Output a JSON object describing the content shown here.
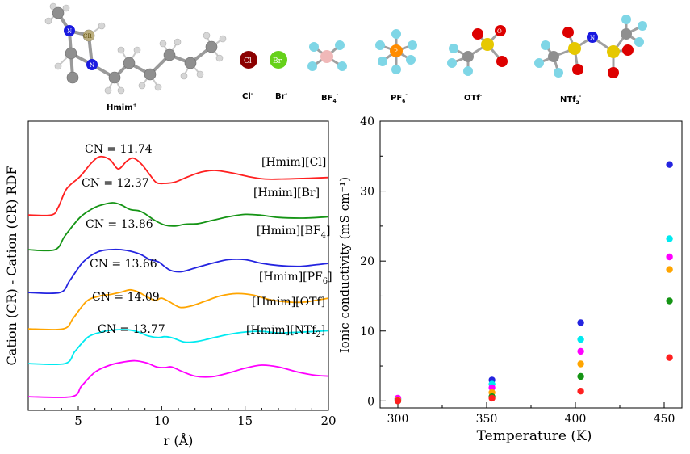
{
  "colors": {
    "Cl": "#ff2020",
    "Br": "#159415",
    "BF4": "#2424e0",
    "PF6": "#ffa500",
    "OTf": "#00eaf0",
    "NTf2": "#ff00ff",
    "atom_carbon": "#8f8f8f",
    "atom_hydrogen": "#cfcfcf",
    "atom_nitrogen": "#1a1ae0",
    "atom_chlorine": "#8b0000",
    "atom_bromine": "#66d11a",
    "atom_fluorine": "#7fd6e6",
    "atom_boron": "#f0b8b8",
    "atom_phosphorus": "#ff8c00",
    "atom_sulfur": "#e6c800",
    "atom_oxygen": "#dd0000"
  },
  "molecules": {
    "hmim": {
      "label": "Hmim",
      "charge": "+",
      "atom_label_cr": "CR",
      "atom_label_n": "N"
    },
    "cl": {
      "label": "Cl",
      "charge": "-",
      "atom_label": "Cl"
    },
    "br": {
      "label": "Br",
      "charge": "-",
      "atom_label": "Br"
    },
    "bf4": {
      "label": "BF",
      "sub": "4",
      "charge": "-"
    },
    "pf6": {
      "label": "PF",
      "sub": "6",
      "charge": "-",
      "atom_label": "P"
    },
    "otf": {
      "label": "OTf",
      "charge": "-",
      "atom_label_o": "O"
    },
    "ntf2": {
      "label": "NTf",
      "sub": "2",
      "charge": "-",
      "atom_label_n": "N"
    }
  },
  "chart_data": [
    {
      "type": "line",
      "panel": "left",
      "ylabel": "Cation (CR) - Cation (CR) RDF",
      "xlabel": "r (Å)",
      "xlim": [
        2,
        20
      ],
      "x_ticks": [
        5,
        10,
        15,
        20
      ],
      "y_ticks": [],
      "stacked_offsets": true,
      "series": [
        {
          "key": "Cl",
          "name": "[Hmim][Cl]",
          "cn_label": "CN = 11.74",
          "points": [
            [
              2,
              0.05
            ],
            [
              3.4,
              0.05
            ],
            [
              3.8,
              0.3
            ],
            [
              4.3,
              0.9
            ],
            [
              5.1,
              1.3
            ],
            [
              5.8,
              1.75
            ],
            [
              6.3,
              1.95
            ],
            [
              6.9,
              1.85
            ],
            [
              7.4,
              1.55
            ],
            [
              7.9,
              1.8
            ],
            [
              8.3,
              1.9
            ],
            [
              8.8,
              1.7
            ],
            [
              9.3,
              1.35
            ],
            [
              9.7,
              1.1
            ],
            [
              10.2,
              1.08
            ],
            [
              10.8,
              1.12
            ],
            [
              11.6,
              1.3
            ],
            [
              12.4,
              1.45
            ],
            [
              13.2,
              1.5
            ],
            [
              14.2,
              1.42
            ],
            [
              15.2,
              1.3
            ],
            [
              16.2,
              1.22
            ],
            [
              17.2,
              1.22
            ],
            [
              18.5,
              1.24
            ],
            [
              20,
              1.27
            ]
          ]
        },
        {
          "key": "Br",
          "name": "[Hmim][Br]",
          "cn_label": "CN = 12.37",
          "points": [
            [
              2,
              0.05
            ],
            [
              3.6,
              0.05
            ],
            [
              4.2,
              0.5
            ],
            [
              5.1,
              1.1
            ],
            [
              5.9,
              1.4
            ],
            [
              6.5,
              1.52
            ],
            [
              7.1,
              1.58
            ],
            [
              7.6,
              1.5
            ],
            [
              8.1,
              1.36
            ],
            [
              8.6,
              1.32
            ],
            [
              9.0,
              1.22
            ],
            [
              9.6,
              1.0
            ],
            [
              10.2,
              0.85
            ],
            [
              10.8,
              0.82
            ],
            [
              11.4,
              0.88
            ],
            [
              12.2,
              0.9
            ],
            [
              13.0,
              1.0
            ],
            [
              14.0,
              1.12
            ],
            [
              15.0,
              1.2
            ],
            [
              16.0,
              1.17
            ],
            [
              17.0,
              1.1
            ],
            [
              18.5,
              1.08
            ],
            [
              20,
              1.12
            ]
          ]
        },
        {
          "key": "BF4",
          "name": "[Hmim][BF4]",
          "cn_label": "CN = 13.86",
          "points": [
            [
              2,
              0.05
            ],
            [
              3.9,
              0.05
            ],
            [
              4.5,
              0.45
            ],
            [
              5.3,
              1.05
            ],
            [
              6.2,
              1.38
            ],
            [
              7.1,
              1.45
            ],
            [
              7.9,
              1.42
            ],
            [
              8.7,
              1.3
            ],
            [
              9.3,
              1.12
            ],
            [
              9.8,
              1.05
            ],
            [
              10.5,
              0.78
            ],
            [
              11.2,
              0.73
            ],
            [
              12.0,
              0.85
            ],
            [
              13.0,
              1.0
            ],
            [
              14.0,
              1.12
            ],
            [
              15.0,
              1.12
            ],
            [
              16.0,
              1.0
            ],
            [
              17.0,
              0.93
            ],
            [
              18.2,
              0.9
            ],
            [
              19.2,
              0.95
            ],
            [
              20,
              1.0
            ]
          ]
        },
        {
          "key": "PF6",
          "name": "[Hmim][PF6]",
          "cn_label": "CN = 13.66",
          "points": [
            [
              2,
              0.05
            ],
            [
              4.1,
              0.05
            ],
            [
              4.7,
              0.4
            ],
            [
              5.5,
              0.95
            ],
            [
              6.3,
              1.12
            ],
            [
              7.0,
              1.18
            ],
            [
              7.6,
              1.25
            ],
            [
              8.1,
              1.32
            ],
            [
              8.6,
              1.25
            ],
            [
              9.1,
              1.1
            ],
            [
              9.6,
              0.98
            ],
            [
              10.0,
              1.05
            ],
            [
              10.5,
              0.92
            ],
            [
              11.1,
              0.75
            ],
            [
              11.8,
              0.8
            ],
            [
              12.6,
              0.95
            ],
            [
              13.5,
              1.12
            ],
            [
              14.5,
              1.2
            ],
            [
              15.5,
              1.15
            ],
            [
              16.5,
              1.0
            ],
            [
              17.5,
              0.93
            ],
            [
              18.5,
              0.92
            ],
            [
              20,
              1.05
            ]
          ]
        },
        {
          "key": "OTf",
          "name": "[Hmim][OTf]",
          "cn_label": "CN = 14.09",
          "points": [
            [
              2,
              0.05
            ],
            [
              4.2,
              0.05
            ],
            [
              4.8,
              0.45
            ],
            [
              5.6,
              0.92
            ],
            [
              6.4,
              1.08
            ],
            [
              7.2,
              1.15
            ],
            [
              8.0,
              1.15
            ],
            [
              8.6,
              1.08
            ],
            [
              9.2,
              0.95
            ],
            [
              9.8,
              0.9
            ],
            [
              10.2,
              0.93
            ],
            [
              10.7,
              0.88
            ],
            [
              11.4,
              0.75
            ],
            [
              12.2,
              0.78
            ],
            [
              13.0,
              0.88
            ],
            [
              14.0,
              1.0
            ],
            [
              15.0,
              1.08
            ],
            [
              16.0,
              1.1
            ],
            [
              17.0,
              1.05
            ],
            [
              18.5,
              1.08
            ],
            [
              20,
              1.12
            ]
          ]
        },
        {
          "key": "NTf2",
          "name": "[Hmim][NTf2]",
          "cn_label": "CN = 13.77",
          "points": [
            [
              2,
              0.05
            ],
            [
              4.6,
              0.05
            ],
            [
              5.2,
              0.4
            ],
            [
              6.0,
              0.85
            ],
            [
              6.9,
              1.08
            ],
            [
              7.7,
              1.18
            ],
            [
              8.4,
              1.22
            ],
            [
              9.1,
              1.15
            ],
            [
              9.7,
              1.02
            ],
            [
              10.2,
              1.0
            ],
            [
              10.6,
              1.02
            ],
            [
              11.2,
              0.88
            ],
            [
              12.0,
              0.72
            ],
            [
              13.0,
              0.7
            ],
            [
              14.0,
              0.82
            ],
            [
              15.0,
              0.98
            ],
            [
              16.0,
              1.08
            ],
            [
              17.0,
              1.02
            ],
            [
              18.2,
              0.85
            ],
            [
              19.2,
              0.75
            ],
            [
              20,
              0.72
            ]
          ]
        }
      ]
    },
    {
      "type": "scatter",
      "panel": "right",
      "xlabel": "Temperature (K)",
      "ylabel": "Ionic conductivity (mS cm⁻¹)",
      "xlim": [
        290,
        460
      ],
      "ylim": [
        -1,
        40
      ],
      "x_ticks": [
        300,
        350,
        400,
        450
      ],
      "y_ticks": [
        0,
        10,
        20,
        30,
        40
      ],
      "x": [
        300,
        353,
        403,
        453
      ],
      "series": [
        {
          "key": "BF4",
          "values": [
            0.3,
            3.0,
            11.2,
            33.8
          ]
        },
        {
          "key": "OTf",
          "values": [
            0.2,
            2.4,
            8.8,
            23.2
          ]
        },
        {
          "key": "NTf2",
          "values": [
            0.4,
            1.9,
            7.1,
            20.6
          ]
        },
        {
          "key": "PF6",
          "values": [
            0.1,
            1.2,
            5.3,
            18.8
          ]
        },
        {
          "key": "Br",
          "values": [
            0.0,
            0.6,
            3.5,
            14.3
          ]
        },
        {
          "key": "Cl",
          "values": [
            0.0,
            0.4,
            1.4,
            6.2
          ]
        }
      ]
    }
  ]
}
